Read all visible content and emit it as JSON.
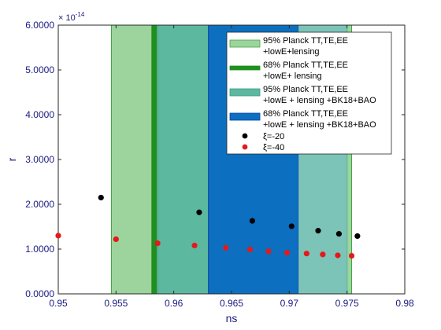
{
  "chart_data": {
    "type": "scatter",
    "title": "",
    "xlabel": "ns",
    "ylabel": "r",
    "xlim": [
      0.95,
      0.98
    ],
    "ylim": [
      0,
      6e-14
    ],
    "y_exponent_label": "× 10",
    "y_exponent_power": "-14",
    "x_ticks": [
      0.95,
      0.955,
      0.96,
      0.965,
      0.97,
      0.975,
      0.98
    ],
    "x_tick_labels": [
      "0.95",
      "0.955",
      "0.96",
      "0.965",
      "0.97",
      "0.975",
      "0.98"
    ],
    "y_ticks": [
      0,
      1,
      2,
      3,
      4,
      5,
      6
    ],
    "y_tick_labels": [
      "0.0000",
      "1.0000",
      "2.0000",
      "3.0000",
      "4.0000",
      "5.0000",
      "6.0000"
    ],
    "y_tick_scale": 1e-14,
    "grid": false,
    "legend_position": "top-right",
    "bands": [
      {
        "name_line1": "95% Planck TT,TE,EE",
        "name_line2": "+lowE+lensing",
        "x_range": [
          0.9546,
          0.9754
        ],
        "color": "#9dd49d",
        "edge": "#3fa63f"
      },
      {
        "name_line1": "68% Planck TT,TE,EE",
        "name_line2": "+lowE+ lensing",
        "x_range": [
          0.9581,
          0.9585
        ],
        "color": "#1f8f1f",
        "edge": "#1f8f1f"
      },
      {
        "name_line1": "95% Planck TT,TE,EE",
        "name_line2": "+lowE + lensing +BK18+BAO",
        "x_range": [
          0.9586,
          0.975
        ],
        "color": "#5db8a0",
        "edge": "#3a9a88"
      },
      {
        "name_line1": "68% Planck TT,TE,EE",
        "name_line2": "+lowE + lensing +BK18+BAO",
        "x_range": [
          0.963,
          0.9708
        ],
        "color": "#0c6fc0",
        "edge": "#0a3fa0"
      }
    ],
    "overlap_color": "#7cc4b8",
    "series": [
      {
        "name": "ξ=-20",
        "color": "#000000",
        "x": [
          0.9537,
          0.9622,
          0.9668,
          0.9702,
          0.9725,
          0.9743,
          0.9759
        ],
        "y": [
          2.15e-14,
          1.82e-14,
          1.63e-14,
          1.51e-14,
          1.41e-14,
          1.34e-14,
          1.29e-14
        ]
      },
      {
        "name": "ξ=-40",
        "color": "#e41a1a",
        "x": [
          0.95,
          0.955,
          0.9586,
          0.9618,
          0.9645,
          0.9666,
          0.9682,
          0.9698,
          0.9715,
          0.9729,
          0.9742,
          0.9754
        ],
        "y": [
          1.3e-14,
          1.22e-14,
          1.13e-14,
          1.08e-14,
          1.03e-14,
          9.9e-15,
          9.5e-15,
          9.2e-15,
          9e-15,
          8.8e-15,
          8.6e-15,
          8.5e-15
        ]
      }
    ]
  }
}
